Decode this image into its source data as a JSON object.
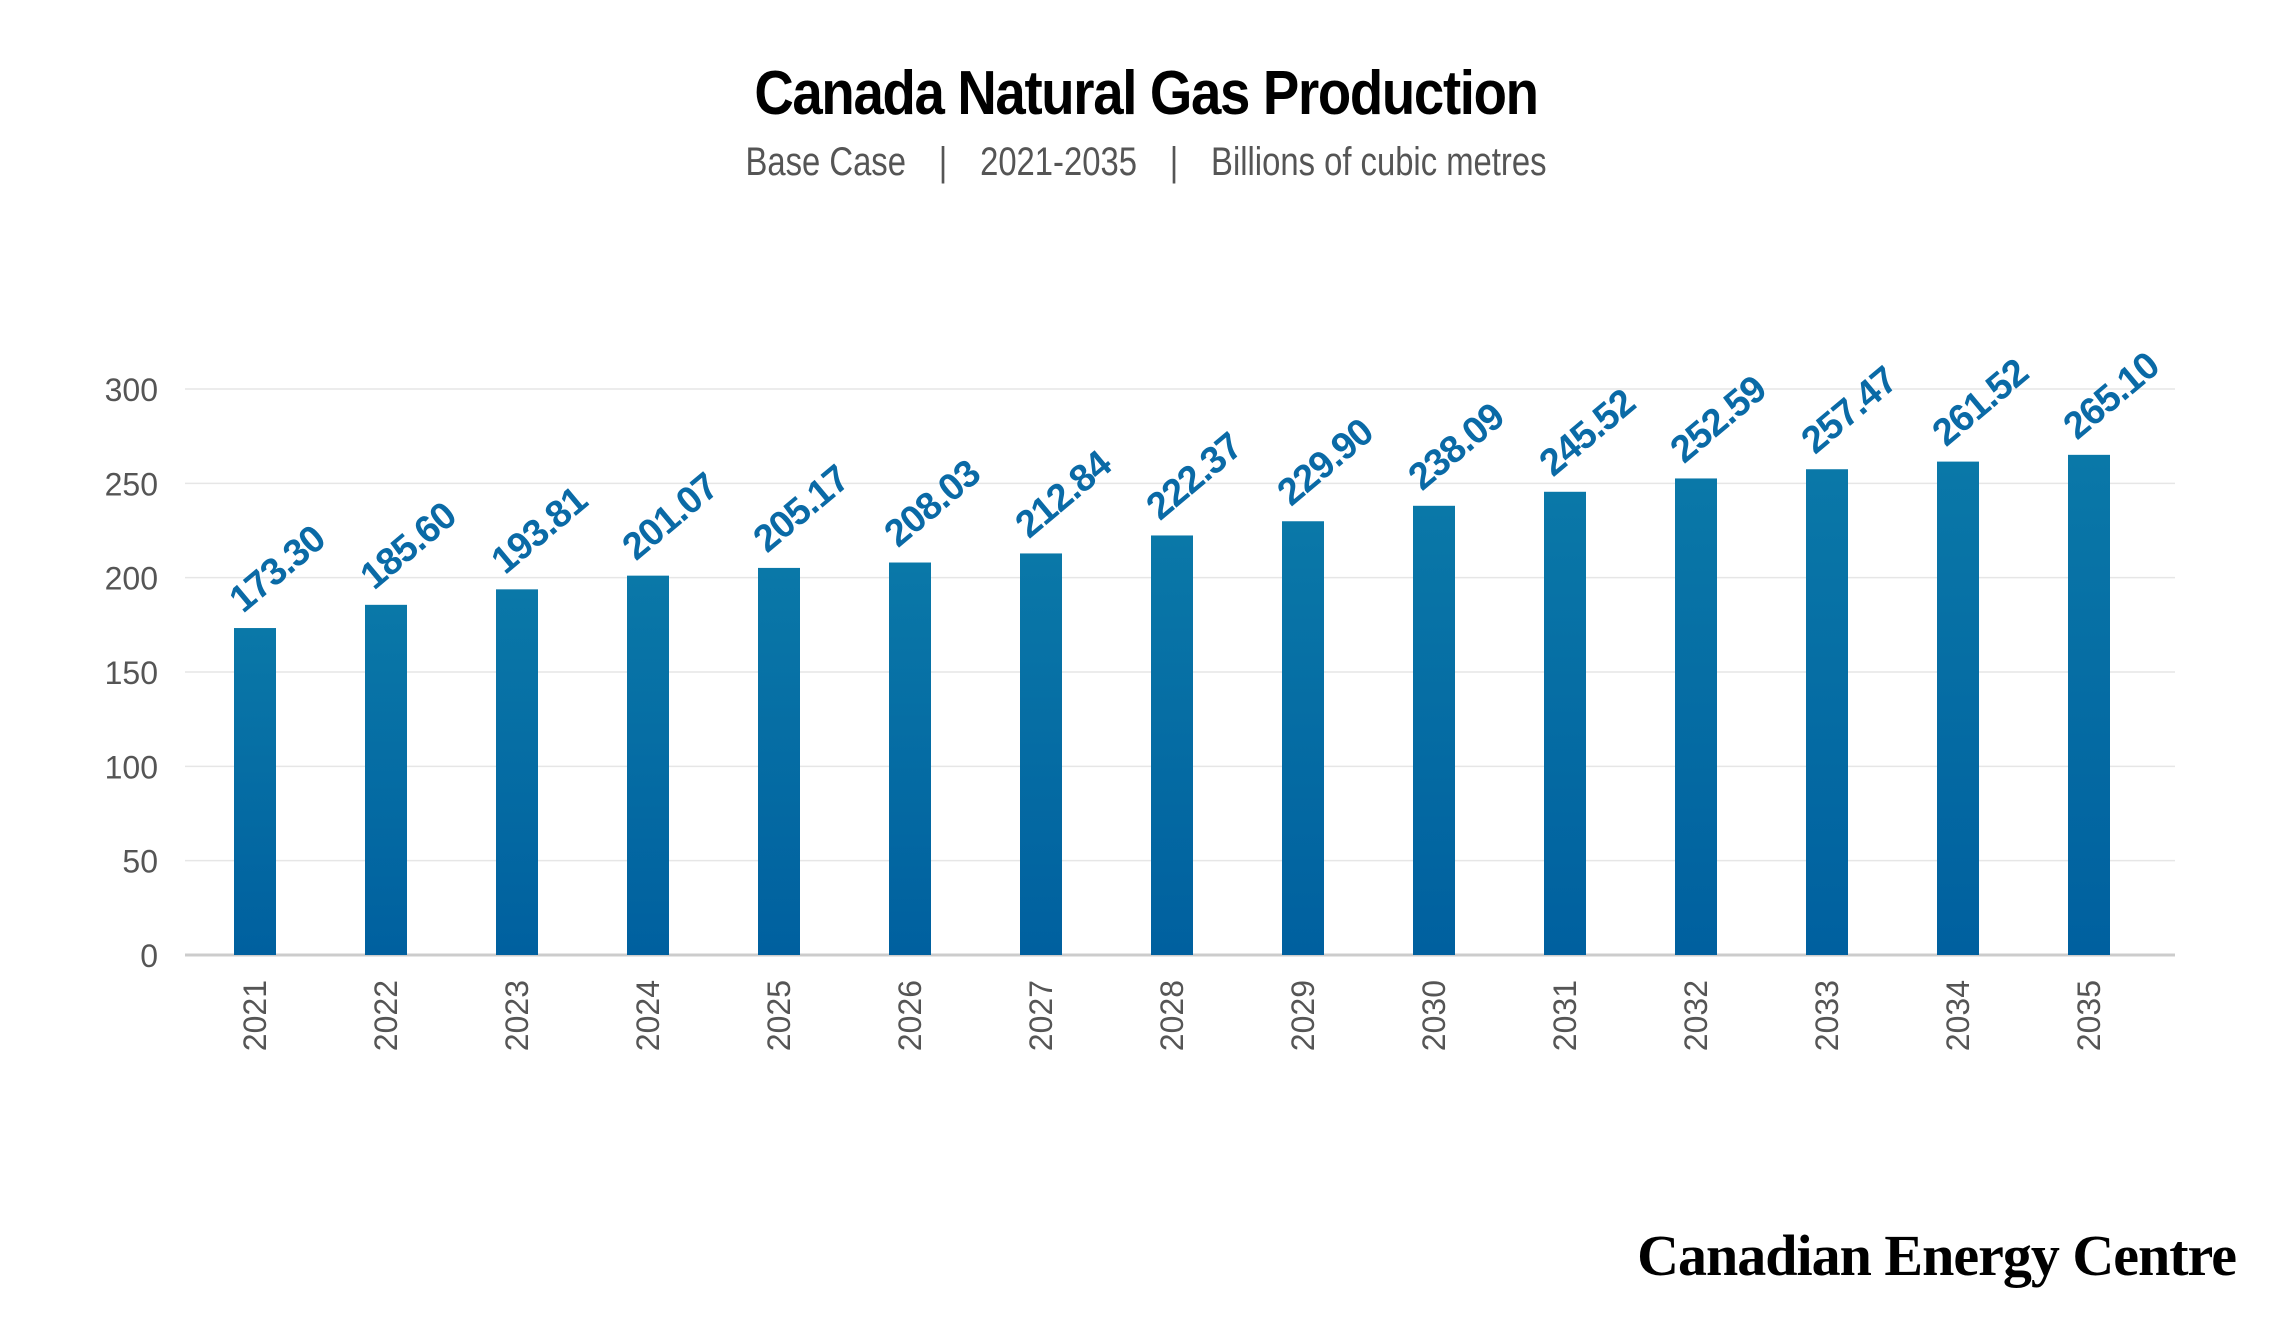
{
  "title": "Canada Natural Gas Production",
  "subtitle": {
    "scenario": "Base Case",
    "period": "2021-2035",
    "units": "Billions of cubic metres",
    "separator": "|"
  },
  "brand": "Canadian Energy Centre",
  "colors": {
    "bar_top": "#0a78a8",
    "bar_bottom": "#00609f",
    "label": "#0a6aa6",
    "axis_text": "#555555",
    "grid": "#e6e6e6"
  },
  "chart_data": {
    "type": "bar",
    "title": "Canada Natural Gas Production",
    "xlabel": "",
    "ylabel": "",
    "categories": [
      "2021",
      "2022",
      "2023",
      "2024",
      "2025",
      "2026",
      "2027",
      "2028",
      "2029",
      "2030",
      "2031",
      "2032",
      "2033",
      "2034",
      "2035"
    ],
    "values": [
      173.3,
      185.6,
      193.81,
      201.07,
      205.17,
      208.03,
      212.84,
      222.37,
      229.9,
      238.09,
      245.52,
      252.59,
      257.47,
      261.52,
      265.1
    ],
    "data_labels": [
      "173.30",
      "185.60",
      "193.81",
      "201.07",
      "205.17",
      "208.03",
      "212.84",
      "222.37",
      "229.90",
      "238.09",
      "245.52",
      "252.59",
      "257.47",
      "261.52",
      "265.10"
    ],
    "ylim": [
      0,
      300
    ],
    "yticks": [
      0,
      50,
      100,
      150,
      200,
      250,
      300
    ],
    "grid": true,
    "legend": "none"
  }
}
